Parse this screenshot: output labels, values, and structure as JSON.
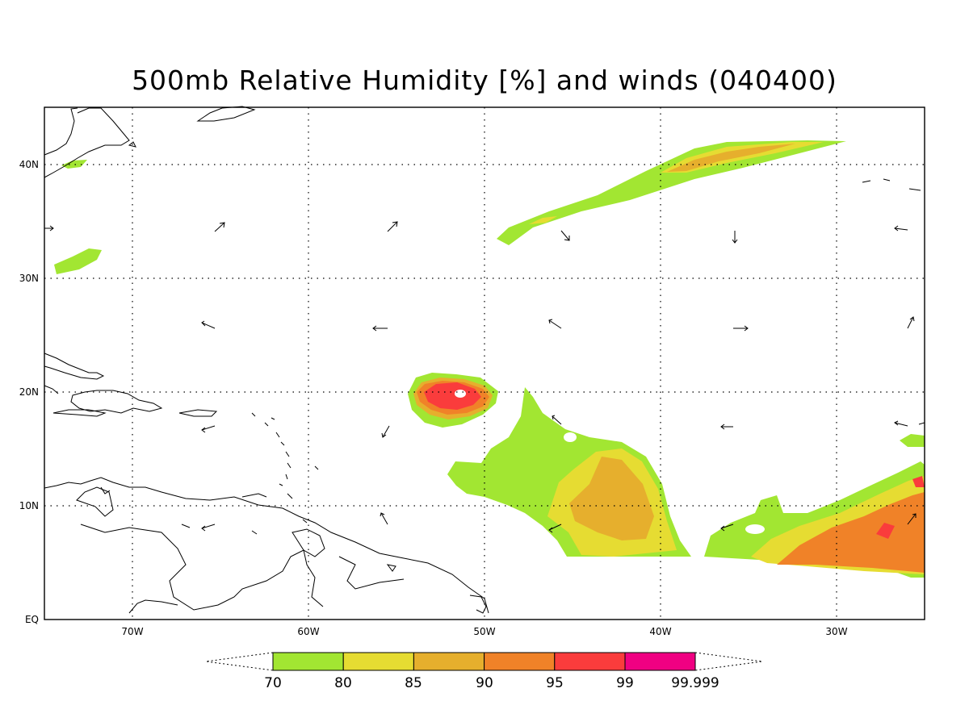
{
  "title": "500mb Relative Humidity [%] and winds (040400)",
  "lat_labels": [
    "40N",
    "30N",
    "20N",
    "10N",
    "EQ"
  ],
  "lon_labels": [
    "70W",
    "60W",
    "50W",
    "40W",
    "30W"
  ],
  "colorbar": {
    "labels": [
      "70",
      "80",
      "85",
      "90",
      "95",
      "99",
      "99.999"
    ],
    "colors": [
      "#a2e632",
      "#e6dc32",
      "#e6af2d",
      "#f08228",
      "#fa3c3c",
      "#f00082"
    ]
  },
  "colors": {
    "rh_70": "#a2e632",
    "rh_80": "#e6dc32",
    "rh_85": "#e6af2d",
    "rh_90": "#f08228",
    "rh_95": "#fa3c3c",
    "rh_99": "#f00082"
  }
}
